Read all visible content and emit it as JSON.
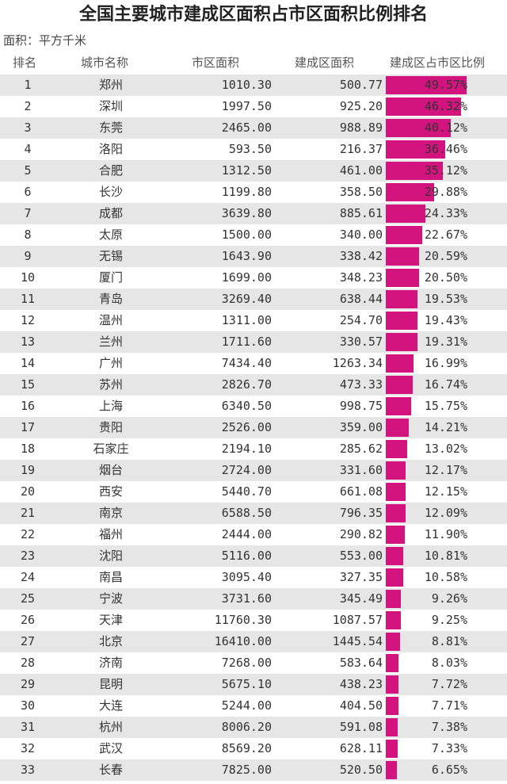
{
  "header": {
    "title": "全国主要城市建成区面积占市区面积比例排名",
    "unit": "面积：平方千米"
  },
  "table": {
    "columns": [
      "排名",
      "城市名称",
      "市区面积",
      "建成区面积",
      "建成区占市区比例"
    ],
    "rows": [
      {
        "cells": [
          "1",
          "郑州",
          "1010.30",
          "500.77"
        ],
        "ratio": 49.57,
        "ratio_label": "49.57%"
      },
      {
        "cells": [
          "2",
          "深圳",
          "1997.50",
          "925.20"
        ],
        "ratio": 46.32,
        "ratio_label": "46.32%"
      },
      {
        "cells": [
          "3",
          "东莞",
          "2465.00",
          "988.89"
        ],
        "ratio": 40.12,
        "ratio_label": "40.12%"
      },
      {
        "cells": [
          "4",
          "洛阳",
          "593.50",
          "216.37"
        ],
        "ratio": 36.46,
        "ratio_label": "36.46%"
      },
      {
        "cells": [
          "5",
          "合肥",
          "1312.50",
          "461.00"
        ],
        "ratio": 35.12,
        "ratio_label": "35.12%"
      },
      {
        "cells": [
          "6",
          "长沙",
          "1199.80",
          "358.50"
        ],
        "ratio": 29.88,
        "ratio_label": "29.88%"
      },
      {
        "cells": [
          "7",
          "成都",
          "3639.80",
          "885.61"
        ],
        "ratio": 24.33,
        "ratio_label": "24.33%"
      },
      {
        "cells": [
          "8",
          "太原",
          "1500.00",
          "340.00"
        ],
        "ratio": 22.67,
        "ratio_label": "22.67%"
      },
      {
        "cells": [
          "9",
          "无锡",
          "1643.90",
          "338.42"
        ],
        "ratio": 20.59,
        "ratio_label": "20.59%"
      },
      {
        "cells": [
          "10",
          "厦门",
          "1699.00",
          "348.23"
        ],
        "ratio": 20.5,
        "ratio_label": "20.50%"
      },
      {
        "cells": [
          "11",
          "青岛",
          "3269.40",
          "638.44"
        ],
        "ratio": 19.53,
        "ratio_label": "19.53%"
      },
      {
        "cells": [
          "12",
          "温州",
          "1311.00",
          "254.70"
        ],
        "ratio": 19.43,
        "ratio_label": "19.43%"
      },
      {
        "cells": [
          "13",
          "兰州",
          "1711.60",
          "330.57"
        ],
        "ratio": 19.31,
        "ratio_label": "19.31%"
      },
      {
        "cells": [
          "14",
          "广州",
          "7434.40",
          "1263.34"
        ],
        "ratio": 16.99,
        "ratio_label": "16.99%"
      },
      {
        "cells": [
          "15",
          "苏州",
          "2826.70",
          "473.33"
        ],
        "ratio": 16.74,
        "ratio_label": "16.74%"
      },
      {
        "cells": [
          "16",
          "上海",
          "6340.50",
          "998.75"
        ],
        "ratio": 15.75,
        "ratio_label": "15.75%"
      },
      {
        "cells": [
          "17",
          "贵阳",
          "2526.00",
          "359.00"
        ],
        "ratio": 14.21,
        "ratio_label": "14.21%"
      },
      {
        "cells": [
          "18",
          "石家庄",
          "2194.10",
          "285.62"
        ],
        "ratio": 13.02,
        "ratio_label": "13.02%"
      },
      {
        "cells": [
          "19",
          "烟台",
          "2724.00",
          "331.60"
        ],
        "ratio": 12.17,
        "ratio_label": "12.17%"
      },
      {
        "cells": [
          "20",
          "西安",
          "5440.70",
          "661.08"
        ],
        "ratio": 12.15,
        "ratio_label": "12.15%"
      },
      {
        "cells": [
          "21",
          "南京",
          "6588.50",
          "796.35"
        ],
        "ratio": 12.09,
        "ratio_label": "12.09%"
      },
      {
        "cells": [
          "22",
          "福州",
          "2444.00",
          "290.82"
        ],
        "ratio": 11.9,
        "ratio_label": "11.90%"
      },
      {
        "cells": [
          "23",
          "沈阳",
          "5116.00",
          "553.00"
        ],
        "ratio": 10.81,
        "ratio_label": "10.81%"
      },
      {
        "cells": [
          "24",
          "南昌",
          "3095.40",
          "327.35"
        ],
        "ratio": 10.58,
        "ratio_label": "10.58%"
      },
      {
        "cells": [
          "25",
          "宁波",
          "3731.60",
          "345.49"
        ],
        "ratio": 9.26,
        "ratio_label": "9.26%"
      },
      {
        "cells": [
          "26",
          "天津",
          "11760.30",
          "1087.57"
        ],
        "ratio": 9.25,
        "ratio_label": "9.25%"
      },
      {
        "cells": [
          "27",
          "北京",
          "16410.00",
          "1445.54"
        ],
        "ratio": 8.81,
        "ratio_label": "8.81%"
      },
      {
        "cells": [
          "28",
          "济南",
          "7268.00",
          "583.64"
        ],
        "ratio": 8.03,
        "ratio_label": "8.03%"
      },
      {
        "cells": [
          "29",
          "昆明",
          "5675.10",
          "438.23"
        ],
        "ratio": 7.72,
        "ratio_label": "7.72%"
      },
      {
        "cells": [
          "30",
          "大连",
          "5244.00",
          "404.50"
        ],
        "ratio": 7.71,
        "ratio_label": "7.71%"
      },
      {
        "cells": [
          "31",
          "杭州",
          "8006.20",
          "591.08"
        ],
        "ratio": 7.38,
        "ratio_label": "7.38%"
      },
      {
        "cells": [
          "32",
          "武汉",
          "8569.20",
          "628.11"
        ],
        "ratio": 7.33,
        "ratio_label": "7.33%"
      },
      {
        "cells": [
          "33",
          "长春",
          "7825.00",
          "520.50"
        ],
        "ratio": 6.65,
        "ratio_label": "6.65%"
      }
    ]
  }
}
